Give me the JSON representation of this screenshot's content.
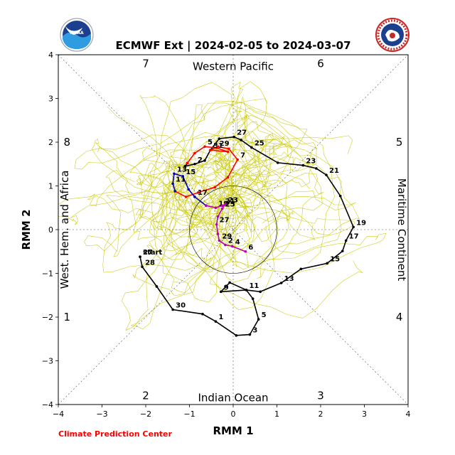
{
  "header": {
    "title": "ECMWF Ext | 2024-02-05 to 2024-03-07",
    "left_logo": "noaa-logo-icon",
    "right_logo": "nws-logo-icon"
  },
  "footer": {
    "credit": "Climate Prediction Center"
  },
  "colors": {
    "ensemble": "#c8c800",
    "obs_black": "#000000",
    "red": "#ff0000",
    "blue": "#0000bb",
    "magenta": "#bb00bb",
    "credit_red": "#ff0000"
  },
  "chart_data": {
    "type": "line",
    "title": "ECMWF Ext | 2024-02-05 to 2024-03-07",
    "xlabel": "RMM 1",
    "ylabel": "RMM 2",
    "xlim": [
      -4,
      4
    ],
    "ylim": [
      -4,
      4
    ],
    "xticks": [
      -4,
      -3,
      -2,
      -1,
      0,
      1,
      2,
      3,
      4
    ],
    "yticks": [
      -4,
      -3,
      -2,
      -1,
      0,
      1,
      2,
      3,
      4
    ],
    "grid": false,
    "unit_circle_radius": 1,
    "phase_numbers": [
      {
        "label": "7",
        "x": -2.0,
        "y": 3.8
      },
      {
        "label": "6",
        "x": 2.0,
        "y": 3.8
      },
      {
        "label": "8",
        "x": -3.8,
        "y": 2.0
      },
      {
        "label": "5",
        "x": 3.8,
        "y": 2.0
      },
      {
        "label": "1",
        "x": -3.8,
        "y": -2.0
      },
      {
        "label": "4",
        "x": 3.8,
        "y": -2.0
      },
      {
        "label": "2",
        "x": -2.0,
        "y": -3.8
      },
      {
        "label": "3",
        "x": 2.0,
        "y": -3.8
      }
    ],
    "region_labels": {
      "top": "Western Pacific",
      "bottom": "Indian Ocean",
      "left": "West. Hem. and Africa",
      "right": "Maritime Continent"
    },
    "series": [
      {
        "color": "black",
        "points": [
          {
            "x": -2.13,
            "y": -0.62,
            "label": "start"
          },
          {
            "x": -2.13,
            "y": -0.62,
            "label": "27"
          },
          {
            "x": -2.08,
            "y": -0.85,
            "label": "28"
          },
          {
            "x": -1.75,
            "y": -1.3
          },
          {
            "x": -1.38,
            "y": -1.83,
            "label": "30"
          },
          {
            "x": -0.7,
            "y": -1.93
          },
          {
            "x": -0.4,
            "y": -2.1,
            "label": "1"
          },
          {
            "x": 0.07,
            "y": -2.42
          },
          {
            "x": 0.38,
            "y": -2.4,
            "label": "3"
          },
          {
            "x": 0.58,
            "y": -2.05,
            "label": "5"
          },
          {
            "x": 0.45,
            "y": -1.58
          },
          {
            "x": 0.3,
            "y": -1.38,
            "label": "11"
          },
          {
            "x": -0.08,
            "y": -1.21
          },
          {
            "x": -0.28,
            "y": -1.42,
            "label": "9"
          },
          {
            "x": 0.3,
            "y": -1.38
          },
          {
            "x": 0.62,
            "y": -1.42
          },
          {
            "x": 1.1,
            "y": -1.22,
            "label": "13"
          },
          {
            "x": 1.55,
            "y": -0.9
          },
          {
            "x": 2.15,
            "y": -0.77,
            "label": "15"
          },
          {
            "x": 2.5,
            "y": -0.49
          },
          {
            "x": 2.58,
            "y": -0.25,
            "label": "17"
          },
          {
            "x": 2.75,
            "y": 0.06,
            "label": "19"
          },
          {
            "x": 2.45,
            "y": 0.77
          },
          {
            "x": 2.13,
            "y": 1.25,
            "label": "21"
          },
          {
            "x": 1.9,
            "y": 1.4
          },
          {
            "x": 1.6,
            "y": 1.47,
            "label": "23"
          },
          {
            "x": 1.02,
            "y": 1.53
          },
          {
            "x": 0.42,
            "y": 1.88,
            "label": "25"
          },
          {
            "x": 0.18,
            "y": 2.05
          },
          {
            "x": 0.02,
            "y": 2.12,
            "label": "27"
          },
          {
            "x": -0.32,
            "y": 2.08
          },
          {
            "x": -0.52,
            "y": 1.82
          },
          {
            "x": -0.65,
            "y": 1.58
          },
          {
            "x": -0.88,
            "y": 1.5,
            "label": "2"
          },
          {
            "x": -1.1,
            "y": 1.45
          },
          {
            "x": -1.05,
            "y": 1.52
          }
        ]
      },
      {
        "color": "red",
        "points": [
          {
            "x": -1.05,
            "y": 1.52
          },
          {
            "x": -0.88,
            "y": 1.75
          },
          {
            "x": -0.65,
            "y": 1.9,
            "label": "5"
          },
          {
            "x": -0.38,
            "y": 1.87,
            "label": "29"
          },
          {
            "x": -0.12,
            "y": 1.78
          },
          {
            "x": -0.52,
            "y": 1.82,
            "label": "31"
          },
          {
            "x": -0.35,
            "y": 1.9
          },
          {
            "x": -0.1,
            "y": 1.85
          },
          {
            "x": 0.1,
            "y": 1.6,
            "label": "7"
          },
          {
            "x": -0.12,
            "y": 1.2
          },
          {
            "x": -0.42,
            "y": 0.97
          },
          {
            "x": -0.8,
            "y": 0.85
          },
          {
            "x": -1.08,
            "y": 0.75
          },
          {
            "x": -1.33,
            "y": 0.88
          }
        ]
      },
      {
        "color": "blue",
        "points": [
          {
            "x": -1.33,
            "y": 0.88
          },
          {
            "x": -1.38,
            "y": 1.05,
            "label": "11"
          },
          {
            "x": -1.35,
            "y": 1.28,
            "label": "13"
          },
          {
            "x": -1.15,
            "y": 1.22,
            "label": "15"
          },
          {
            "x": -1.02,
            "y": 0.92
          },
          {
            "x": -0.88,
            "y": 0.75,
            "label": "17"
          },
          {
            "x": -0.62,
            "y": 0.55
          }
        ]
      },
      {
        "color": "magenta",
        "points": [
          {
            "x": -0.62,
            "y": 0.55
          },
          {
            "x": -0.4,
            "y": 0.5,
            "label": "19"
          },
          {
            "x": -0.25,
            "y": 0.55,
            "label": "21"
          },
          {
            "x": -0.18,
            "y": 0.58,
            "label": "23"
          },
          {
            "x": -0.25,
            "y": 0.48,
            "label": "25"
          },
          {
            "x": -0.35,
            "y": 0.3
          },
          {
            "x": -0.38,
            "y": 0.12,
            "label": "27"
          },
          {
            "x": -0.35,
            "y": -0.1
          },
          {
            "x": -0.32,
            "y": -0.25,
            "label": "29"
          },
          {
            "x": -0.18,
            "y": -0.35,
            "label": "2"
          },
          {
            "x": -0.02,
            "y": -0.38,
            "label": "4"
          },
          {
            "x": 0.28,
            "y": -0.5,
            "label": "6"
          }
        ]
      }
    ]
  }
}
